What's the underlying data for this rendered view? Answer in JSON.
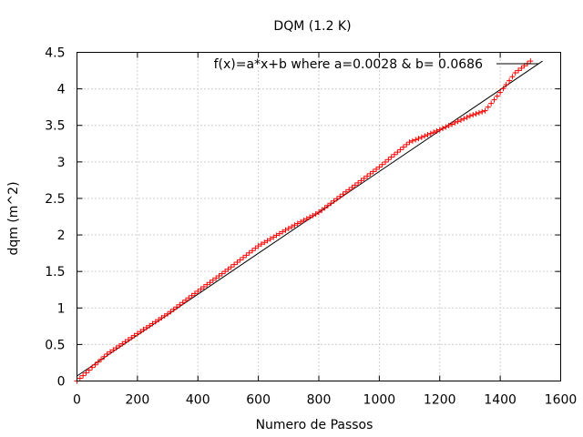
{
  "chart_data": {
    "type": "scatter",
    "title": "DQM (1.2 K)",
    "xlabel": "Numero de Passos",
    "ylabel": "dqm (m^2)",
    "xlim": [
      0,
      1600
    ],
    "ylim": [
      0,
      4.5
    ],
    "xticks": [
      0,
      200,
      400,
      600,
      800,
      1000,
      1200,
      1400,
      1600
    ],
    "xtick_labels": [
      "0",
      "200",
      "400",
      "600",
      "800",
      "1000",
      "1200",
      "1400",
      "1600"
    ],
    "yticks": [
      0,
      0.5,
      1,
      1.5,
      2,
      2.5,
      3,
      3.5,
      4,
      4.5
    ],
    "ytick_labels": [
      "0",
      "0.5",
      "1",
      "1.5",
      "2",
      "2.5",
      "3",
      "3.5",
      "4",
      "4.5"
    ],
    "grid": true,
    "legend_position": "top-right",
    "series": [
      {
        "name": "",
        "kind": "points",
        "marker": "plus",
        "color": "#ff0000",
        "x": [
          0,
          100,
          200,
          300,
          400,
          500,
          600,
          700,
          800,
          900,
          1000,
          1100,
          1200,
          1300,
          1350,
          1400,
          1450,
          1500
        ],
        "y": [
          0.0,
          0.37,
          0.65,
          0.92,
          1.23,
          1.53,
          1.85,
          2.09,
          2.31,
          2.62,
          2.93,
          3.27,
          3.44,
          3.63,
          3.7,
          3.95,
          4.22,
          4.38
        ]
      },
      {
        "name": "f(x)=a*x+b where a=0.0028 & b= 0.0686",
        "kind": "fit",
        "color": "#000000",
        "a": 0.0028,
        "b": 0.0686,
        "x_range": [
          0,
          1540
        ]
      }
    ]
  }
}
